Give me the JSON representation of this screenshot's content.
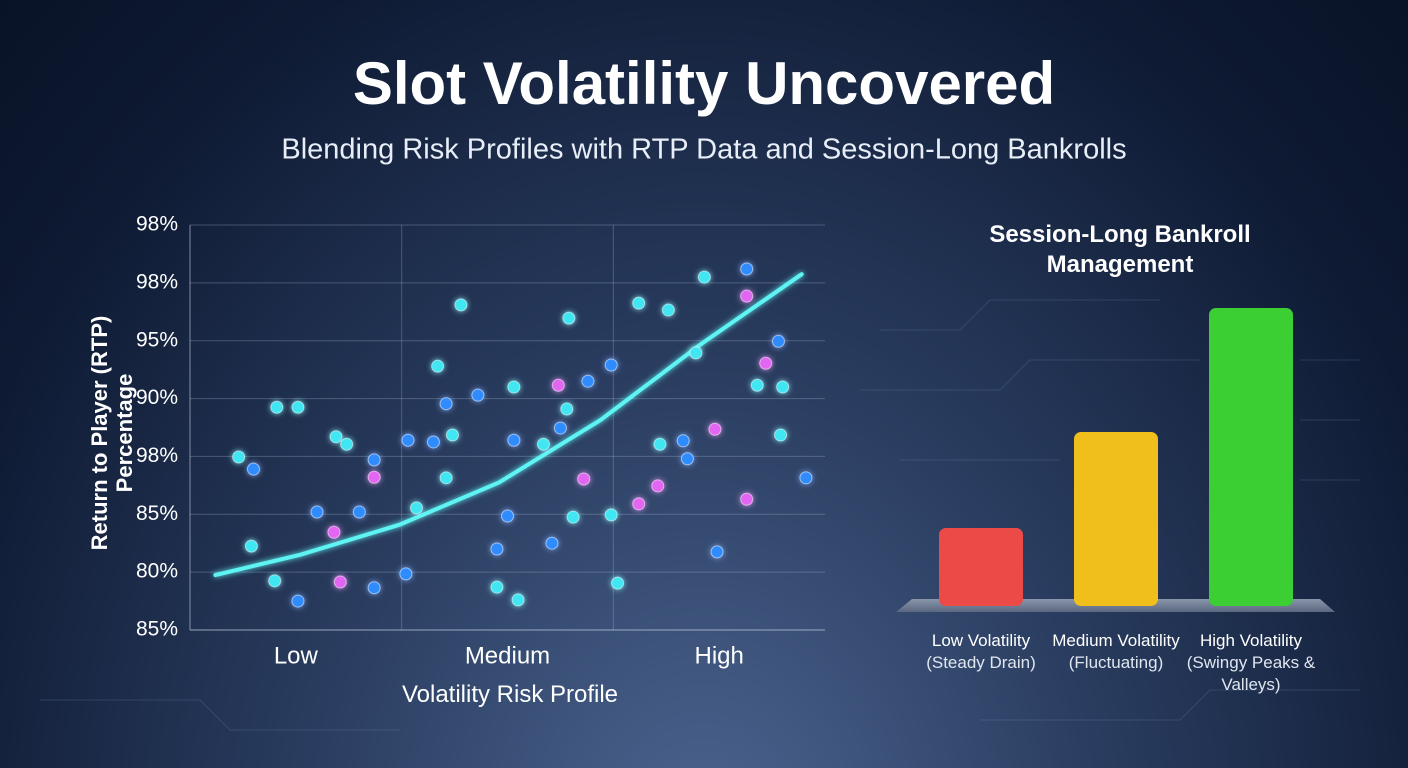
{
  "header": {
    "title": "Slot Volatility Uncovered",
    "subtitle": "Blending Risk Profiles with RTP Data and Session-Long Bankrolls"
  },
  "chart_data": [
    {
      "type": "scatter",
      "ylabel": "Return to Player (RTP) Percentage",
      "xlabel": "Volatility Risk Profile",
      "categories": [
        "Low",
        "Medium",
        "High"
      ],
      "xlim": [
        0,
        3
      ],
      "ylim": [
        0,
        7
      ],
      "yticks": [
        {
          "value": 0,
          "label": "85%"
        },
        {
          "value": 1,
          "label": "80%"
        },
        {
          "value": 2,
          "label": "85%"
        },
        {
          "value": 3,
          "label": "98%"
        },
        {
          "value": 4,
          "label": "90%"
        },
        {
          "value": 5,
          "label": "95%"
        },
        {
          "value": 6,
          "label": "98%"
        },
        {
          "value": 7,
          "label": "98%"
        }
      ],
      "grid": true,
      "series": [
        {
          "color": "#3fe6f2",
          "x": [
            0.23,
            0.29,
            0.4,
            0.41,
            0.51,
            0.69,
            0.74,
            1.07,
            1.17,
            1.21,
            1.24,
            1.28,
            1.45,
            1.55,
            1.53,
            1.67,
            1.78,
            1.79,
            1.81,
            1.99,
            2.02,
            2.12,
            2.22,
            2.26,
            2.39,
            2.43,
            2.68,
            2.79,
            2.8
          ],
          "y": [
            2.99,
            1.45,
            0.85,
            3.85,
            3.85,
            3.34,
            3.21,
            2.11,
            4.56,
            2.63,
            3.37,
            5.62,
            0.74,
            0.52,
            4.2,
            3.21,
            3.82,
            5.39,
            1.95,
            1.99,
            0.81,
            5.65,
            3.21,
            5.53,
            4.79,
            6.1,
            4.23,
            3.37,
            4.2
          ]
        },
        {
          "color": "#2f8cff",
          "x": [
            0.3,
            0.51,
            0.6,
            0.8,
            0.87,
            0.87,
            1.02,
            1.03,
            1.15,
            1.21,
            1.36,
            1.45,
            1.5,
            1.53,
            1.71,
            1.75,
            1.88,
            1.99,
            2.33,
            2.35,
            2.49,
            2.63,
            2.78,
            2.91
          ],
          "y": [
            2.78,
            0.5,
            2.04,
            2.04,
            0.73,
            2.94,
            0.97,
            3.28,
            3.25,
            3.91,
            4.06,
            1.4,
            1.97,
            3.28,
            1.5,
            3.49,
            4.3,
            4.58,
            3.27,
            2.96,
            1.35,
            6.24,
            4.99,
            2.63
          ]
        },
        {
          "color": "#e266f2",
          "x": [
            0.68,
            0.71,
            0.87,
            1.74,
            1.86,
            2.12,
            2.21,
            2.48,
            2.63,
            2.72,
            2.63
          ],
          "y": [
            1.69,
            0.83,
            2.64,
            4.23,
            2.61,
            2.18,
            2.49,
            3.47,
            5.77,
            4.61,
            2.26
          ]
        }
      ],
      "trend": {
        "color": "#5ff4f4",
        "x": [
          0.12,
          0.52,
          0.99,
          1.46,
          1.94,
          2.41,
          2.89
        ],
        "y": [
          0.95,
          1.3,
          1.82,
          2.55,
          3.63,
          4.93,
          6.15
        ]
      }
    },
    {
      "type": "bar",
      "title": "Session-Long Bankroll Management",
      "categories": [
        "Low Volatility",
        "Medium Volatility",
        "High Volatility"
      ],
      "descriptions": [
        "(Steady Drain)",
        "(Fluctuating)",
        "(Swingy Peaks & Valleys)"
      ],
      "values": [
        78,
        174,
        298
      ],
      "colors": [
        "#ec4a46",
        "#f0bf1c",
        "#3ccf34"
      ]
    }
  ]
}
